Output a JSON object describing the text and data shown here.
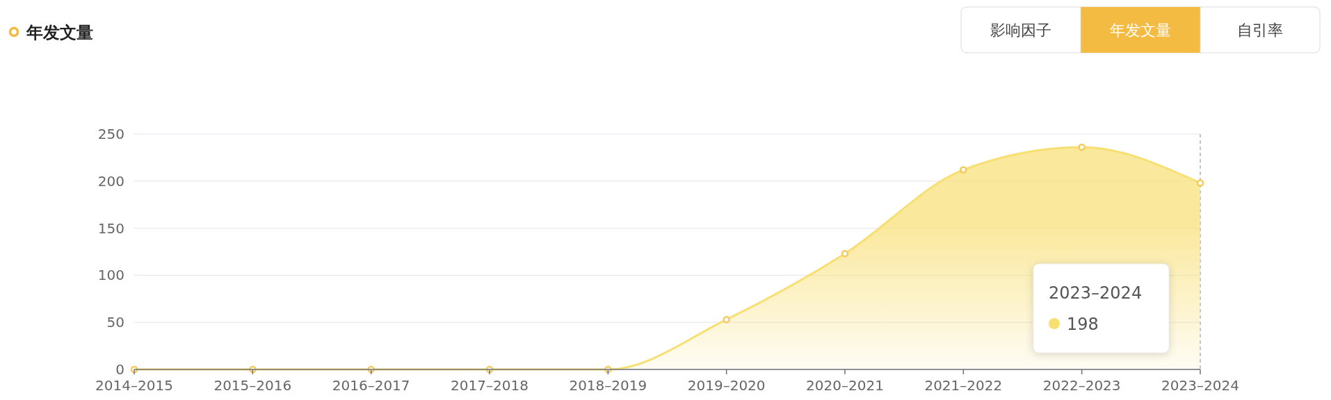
{
  "chart_data": {
    "type": "area",
    "title": "年发文量",
    "categories": [
      "2014–2015",
      "2015–2016",
      "2016–2017",
      "2017–2018",
      "2018–2019",
      "2019–2020",
      "2020–2021",
      "2021–2022",
      "2022–2023",
      "2023–2024"
    ],
    "series": [
      {
        "color": "#f8df72",
        "values": [
          0,
          0,
          0,
          0,
          0,
          53,
          123,
          212,
          236,
          198
        ]
      }
    ],
    "ylim": [
      0,
      250
    ],
    "yticks": [
      0,
      50,
      100,
      150,
      200,
      250
    ],
    "grid": "y",
    "marker": "circle",
    "ref_lines": [
      {
        "axis": "x",
        "value": "2023–2024",
        "line_style": "dashed",
        "color": "#b0b0bc"
      }
    ],
    "annotations": [
      "影响因子",
      "年发文量",
      "自引率",
      "2023–2024",
      "198"
    ]
  }
}
